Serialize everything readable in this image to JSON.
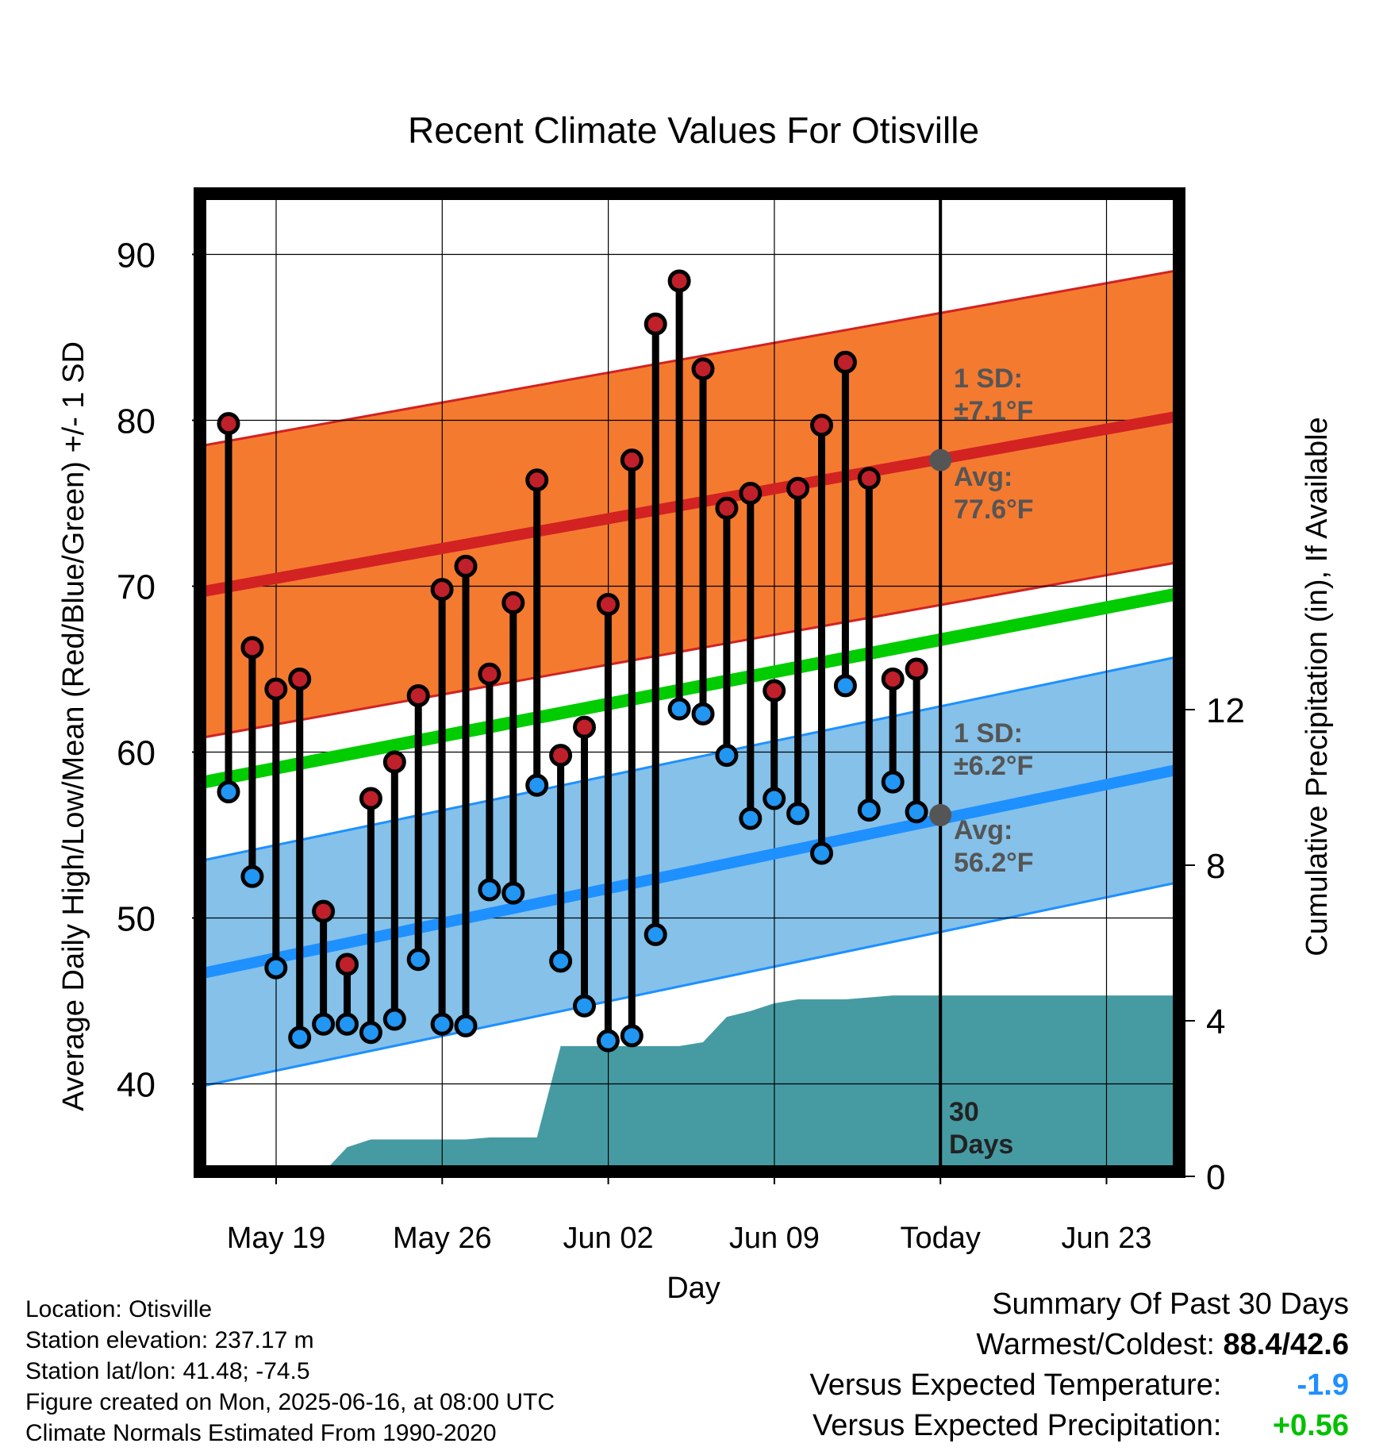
{
  "chart_data": {
    "type": "line",
    "title": "Recent Climate Values For Otisville",
    "xlabel": "Day",
    "ylabel": "Average Daily High/Low/Mean (Red/Blue/Green) +/- 1 SD",
    "y2label": "Cumulative Precipitation (in), If Available",
    "x_ticks": [
      "May 19",
      "May 26",
      "Jun 02",
      "Jun 09",
      "Today",
      "Jun 23"
    ],
    "y_ticks": [
      "40",
      "50",
      "60",
      "70",
      "80",
      "90"
    ],
    "y2_ticks": [
      "0",
      "4",
      "8",
      "12"
    ],
    "ylim": [
      35,
      92
    ],
    "y2lim": [
      0,
      16.5
    ],
    "grid": true,
    "days_label": "30 Days",
    "highs": [
      79.8,
      66.3,
      63.8,
      64.4,
      50.4,
      47.2,
      57.2,
      59.4,
      63.4,
      69.8,
      71.2,
      64.7,
      69.0,
      76.4,
      59.8,
      61.5,
      68.9,
      77.6,
      85.8,
      88.4,
      83.1,
      74.7,
      75.6,
      63.7,
      75.9,
      79.7,
      83.5,
      76.5,
      64.4,
      65.0
    ],
    "lows": [
      57.6,
      52.5,
      47.0,
      42.8,
      43.6,
      43.6,
      43.1,
      43.9,
      47.5,
      43.6,
      43.5,
      51.7,
      51.5,
      58.0,
      47.4,
      44.7,
      42.6,
      42.9,
      49.0,
      62.6,
      62.3,
      59.8,
      56.0,
      57.2,
      56.3,
      53.9,
      64.0,
      56.5,
      58.2,
      56.4
    ],
    "precip_cumulative": [
      0,
      0,
      0,
      0,
      0.1,
      0.75,
      0.95,
      0.95,
      0.95,
      0.95,
      0.95,
      1.0,
      1.0,
      1.0,
      3.35,
      3.35,
      3.35,
      3.35,
      3.35,
      3.35,
      3.45,
      4.1,
      4.25,
      4.45,
      4.55,
      4.55,
      4.55,
      4.6,
      4.65,
      4.65
    ],
    "normal_high_start": 69.7,
    "normal_high_end": 80.2,
    "normal_low_start": 46.7,
    "normal_low_end": 58.9,
    "normal_mean_start": 58.2,
    "normal_mean_end": 69.5,
    "high_sd_band": "1 SD: ±7.1°F",
    "high_avg_label": "Avg: 77.6°F",
    "low_sd_band": "1 SD: ±6.2°F",
    "low_avg_label": "Avg: 56.2°F",
    "today_high_avg": 77.6,
    "today_low_avg": 56.2,
    "colors": {
      "high_band": "#f47a30",
      "high_line": "#d22222",
      "low_band": "#85c1e9",
      "low_line": "#1e90ff",
      "mean_line": "#00cc00",
      "precip": "#469ba3",
      "high_dot": "#c0202a",
      "low_dot": "#2196f3",
      "today_dot": "#555555"
    }
  },
  "info": {
    "location": "Location: Otisville",
    "elevation": "Station elevation: 237.17 m",
    "latlon": "Station lat/lon: 41.48; -74.5",
    "created": "Figure created on Mon, 2025-06-16, at 08:00 UTC",
    "normals": "Climate Normals Estimated From 1990-2020"
  },
  "summary": {
    "title": "Summary Of Past 30 Days",
    "warm_label": "Warmest/Coldest:",
    "warm_value": "88.4/42.6",
    "temp_label": "Versus Expected Temperature:",
    "temp_value": "-1.9",
    "precip_label": "Versus Expected Precipitation:",
    "precip_value": "+0.56"
  }
}
